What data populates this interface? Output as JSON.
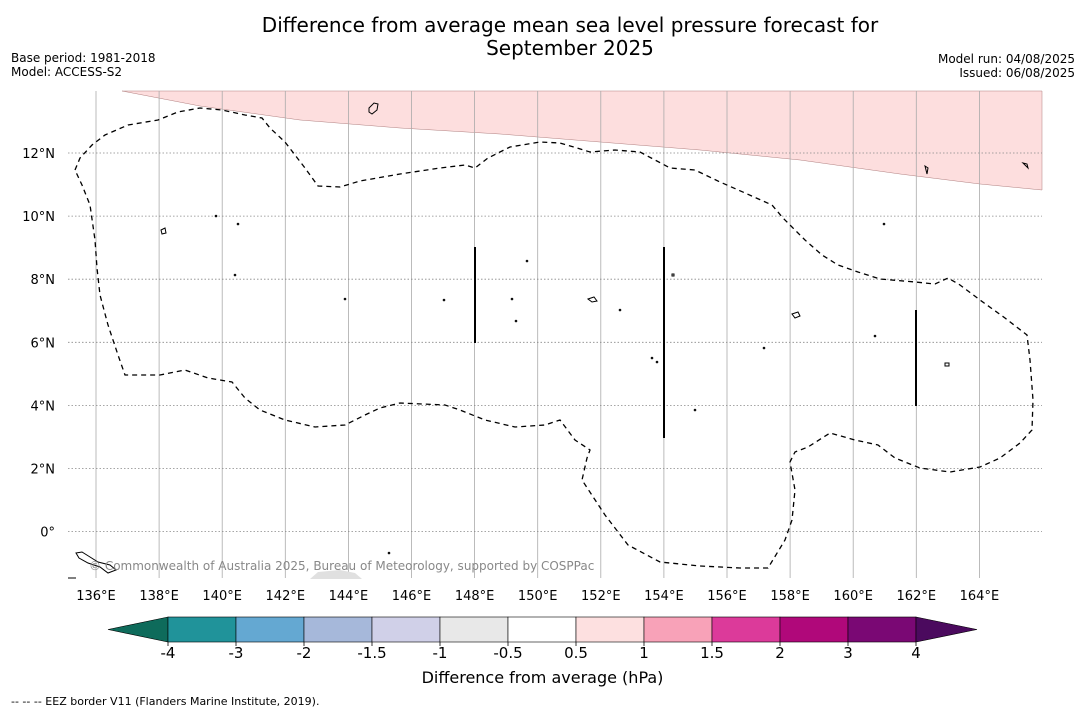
{
  "title_line1": "Difference from average mean sea level pressure forecast for",
  "title_line2": "September 2025",
  "base_period": "Base period: 1981-2018",
  "model": "Model: ACCESS-S2",
  "model_run": "Model run: 04/08/2025",
  "issued": "Issued: 06/08/2025",
  "copyright": "© Commonwealth of Australia 2025, Bureau of Meteorology, supported by COSPPac",
  "footer_note": "--  --  -- EEZ border V11 (Flanders Marine Institute, 2019).",
  "map": {
    "lon_labels": [
      "136°E",
      "138°E",
      "140°E",
      "142°E",
      "144°E",
      "146°E",
      "148°E",
      "150°E",
      "152°E",
      "154°E",
      "156°E",
      "158°E",
      "160°E",
      "162°E",
      "164°E"
    ],
    "lat_labels": [
      "12°N",
      "10°N",
      "8°N",
      "6°N",
      "4°N",
      "2°N",
      "0°"
    ],
    "anomaly_region_color": "#fddede",
    "anomaly_region_category": "0.5 to 1 hPa"
  },
  "colorbar": {
    "title": "Difference from average (hPa)",
    "tick_labels": [
      "-4",
      "-3",
      "-2",
      "-1.5",
      "-1",
      "-0.5",
      "0.5",
      "1",
      "1.5",
      "2",
      "3",
      "4"
    ],
    "under_color": "#0e6b5b",
    "over_color": "#4b0a5e",
    "bins": [
      {
        "color": "#20939a"
      },
      {
        "color": "#64a8d2"
      },
      {
        "color": "#a6b8da"
      },
      {
        "color": "#d0d0e8"
      },
      {
        "color": "#e8e8e8"
      },
      {
        "color": "#ffffff"
      },
      {
        "color": "#fde0e0"
      },
      {
        "color": "#f8a2b8"
      },
      {
        "color": "#dc3a9a"
      },
      {
        "color": "#b0087a"
      },
      {
        "color": "#7a0874"
      }
    ]
  }
}
